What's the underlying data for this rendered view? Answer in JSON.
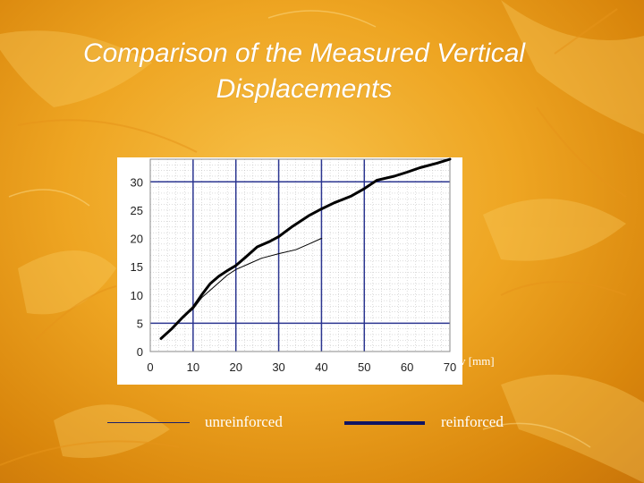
{
  "title_line1": "Comparison of the Measured Vertical",
  "title_line2": "Displacements",
  "x_unit_label": "v [mm]",
  "legend": {
    "unreinforced": "unreinforced",
    "reinforced": "reinforced"
  },
  "colors": {
    "background": "#eea522",
    "plot_background": "#ffffff",
    "major_grid": "#2b3590",
    "minor_grid": "#b8b8b8",
    "series": "#000000",
    "legend_line": "#101563"
  },
  "chart_data": {
    "type": "line",
    "title": "Comparison of the Measured Vertical Displacements",
    "xlabel": "v [mm]",
    "ylabel": "",
    "xlim": [
      0,
      70
    ],
    "ylim": [
      0,
      34
    ],
    "xticks": [
      0,
      10,
      20,
      30,
      40,
      50,
      60,
      70
    ],
    "yticks": [
      0,
      5,
      10,
      15,
      20,
      25,
      30
    ],
    "x_major_grid": [
      10,
      20,
      30,
      40,
      50
    ],
    "y_major_grid": [
      5,
      30
    ],
    "grid": true,
    "series": [
      {
        "name": "unreinforced",
        "x": [
          2.5,
          5,
          7.5,
          10,
          12,
          15,
          18,
          20,
          23,
          26,
          30,
          34,
          37,
          40
        ],
        "y": [
          2.3,
          4,
          6,
          7.5,
          9.5,
          11.5,
          13.5,
          14.5,
          15.5,
          16.5,
          17.3,
          18,
          19,
          20
        ]
      },
      {
        "name": "reinforced",
        "x": [
          2.5,
          5,
          7.5,
          10,
          12,
          14,
          16,
          18,
          20,
          22,
          25,
          28,
          30,
          33,
          37,
          40,
          43,
          47,
          50,
          53,
          57,
          60,
          63,
          67,
          70
        ],
        "y": [
          2.3,
          4,
          6,
          7.8,
          10,
          12,
          13.3,
          14.3,
          15.2,
          16.5,
          18.5,
          19.5,
          20.3,
          22,
          24,
          25.2,
          26.3,
          27.5,
          28.8,
          30.3,
          31,
          31.7,
          32.5,
          33.3,
          34
        ]
      }
    ]
  }
}
